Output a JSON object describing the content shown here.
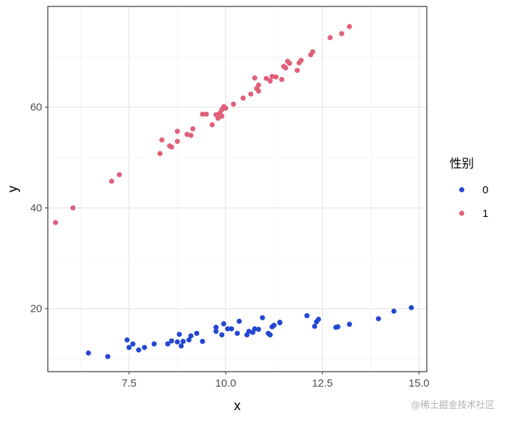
{
  "chart_data": {
    "type": "scatter",
    "xlabel": "x",
    "ylabel": "y",
    "xlim": [
      5.4,
      15.2
    ],
    "ylim": [
      7.5,
      80.0
    ],
    "x_ticks": [
      7.5,
      10.0,
      12.5,
      15.0
    ],
    "x_tick_labels": [
      "7.5",
      "10.0",
      "12.5",
      "15.0"
    ],
    "y_ticks": [
      20,
      40,
      60
    ],
    "y_tick_labels": [
      "20",
      "40",
      "60"
    ],
    "grid": true,
    "theme": "bw",
    "legend": {
      "title": "性别",
      "placement": "right",
      "entries": [
        "0",
        "1"
      ]
    },
    "colors": {
      "0": "#2347d3",
      "1": "#e0607a"
    },
    "series": [
      {
        "name": "0",
        "color": "#2347d3",
        "points": [
          [
            6.45,
            11.2
          ],
          [
            6.95,
            10.5
          ],
          [
            7.45,
            13.8
          ],
          [
            7.5,
            12.3
          ],
          [
            7.6,
            13.0
          ],
          [
            7.75,
            11.8
          ],
          [
            7.9,
            12.3
          ],
          [
            8.15,
            13.0
          ],
          [
            8.5,
            13.0
          ],
          [
            8.6,
            13.6
          ],
          [
            8.75,
            13.4
          ],
          [
            8.8,
            14.9
          ],
          [
            8.85,
            12.6
          ],
          [
            8.9,
            13.5
          ],
          [
            9.05,
            13.8
          ],
          [
            9.1,
            14.6
          ],
          [
            9.25,
            15.1
          ],
          [
            9.4,
            13.5
          ],
          [
            9.75,
            16.3
          ],
          [
            9.75,
            15.5
          ],
          [
            9.9,
            14.8
          ],
          [
            9.95,
            17.0
          ],
          [
            10.05,
            16.0
          ],
          [
            10.15,
            16.0
          ],
          [
            10.3,
            15.1
          ],
          [
            10.35,
            17.5
          ],
          [
            10.55,
            14.8
          ],
          [
            10.6,
            15.5
          ],
          [
            10.7,
            15.3
          ],
          [
            10.75,
            16.0
          ],
          [
            10.85,
            15.9
          ],
          [
            10.95,
            18.2
          ],
          [
            11.1,
            15.1
          ],
          [
            11.15,
            14.8
          ],
          [
            11.2,
            16.4
          ],
          [
            11.25,
            16.7
          ],
          [
            11.4,
            17.2
          ],
          [
            11.4,
            17.3
          ],
          [
            12.1,
            18.6
          ],
          [
            12.3,
            16.5
          ],
          [
            12.35,
            17.4
          ],
          [
            12.4,
            17.9
          ],
          [
            12.85,
            16.3
          ],
          [
            12.9,
            16.4
          ],
          [
            13.2,
            16.9
          ],
          [
            13.95,
            18.0
          ],
          [
            14.35,
            19.5
          ],
          [
            14.8,
            20.2
          ]
        ]
      },
      {
        "name": "1",
        "color": "#e0607a",
        "points": [
          [
            5.6,
            37.1
          ],
          [
            6.05,
            40.0
          ],
          [
            7.05,
            45.3
          ],
          [
            7.25,
            46.6
          ],
          [
            8.3,
            50.8
          ],
          [
            8.35,
            53.5
          ],
          [
            8.55,
            52.3
          ],
          [
            8.6,
            52.1
          ],
          [
            8.75,
            53.2
          ],
          [
            8.75,
            55.2
          ],
          [
            9.0,
            54.6
          ],
          [
            9.1,
            54.4
          ],
          [
            9.15,
            55.7
          ],
          [
            9.4,
            58.6
          ],
          [
            9.5,
            58.6
          ],
          [
            9.65,
            56.5
          ],
          [
            9.75,
            58.5
          ],
          [
            9.8,
            57.8
          ],
          [
            9.85,
            58.8
          ],
          [
            9.9,
            59.5
          ],
          [
            9.9,
            58.2
          ],
          [
            9.95,
            60.1
          ],
          [
            10.0,
            59.8
          ],
          [
            10.2,
            60.6
          ],
          [
            10.45,
            61.8
          ],
          [
            10.65,
            62.6
          ],
          [
            10.75,
            65.8
          ],
          [
            10.8,
            63.7
          ],
          [
            10.85,
            63.2
          ],
          [
            10.85,
            64.4
          ],
          [
            11.05,
            65.7
          ],
          [
            11.15,
            65.2
          ],
          [
            11.2,
            66.1
          ],
          [
            11.3,
            66.0
          ],
          [
            11.45,
            65.5
          ],
          [
            11.5,
            68.1
          ],
          [
            11.55,
            67.8
          ],
          [
            11.6,
            69.1
          ],
          [
            11.65,
            68.7
          ],
          [
            11.85,
            67.3
          ],
          [
            11.9,
            68.8
          ],
          [
            11.95,
            69.3
          ],
          [
            12.2,
            70.4
          ],
          [
            12.25,
            71.0
          ],
          [
            12.7,
            73.8
          ],
          [
            13.0,
            74.6
          ],
          [
            13.2,
            76.0
          ]
        ]
      }
    ]
  },
  "watermark": "@稀土掘金技术社区"
}
